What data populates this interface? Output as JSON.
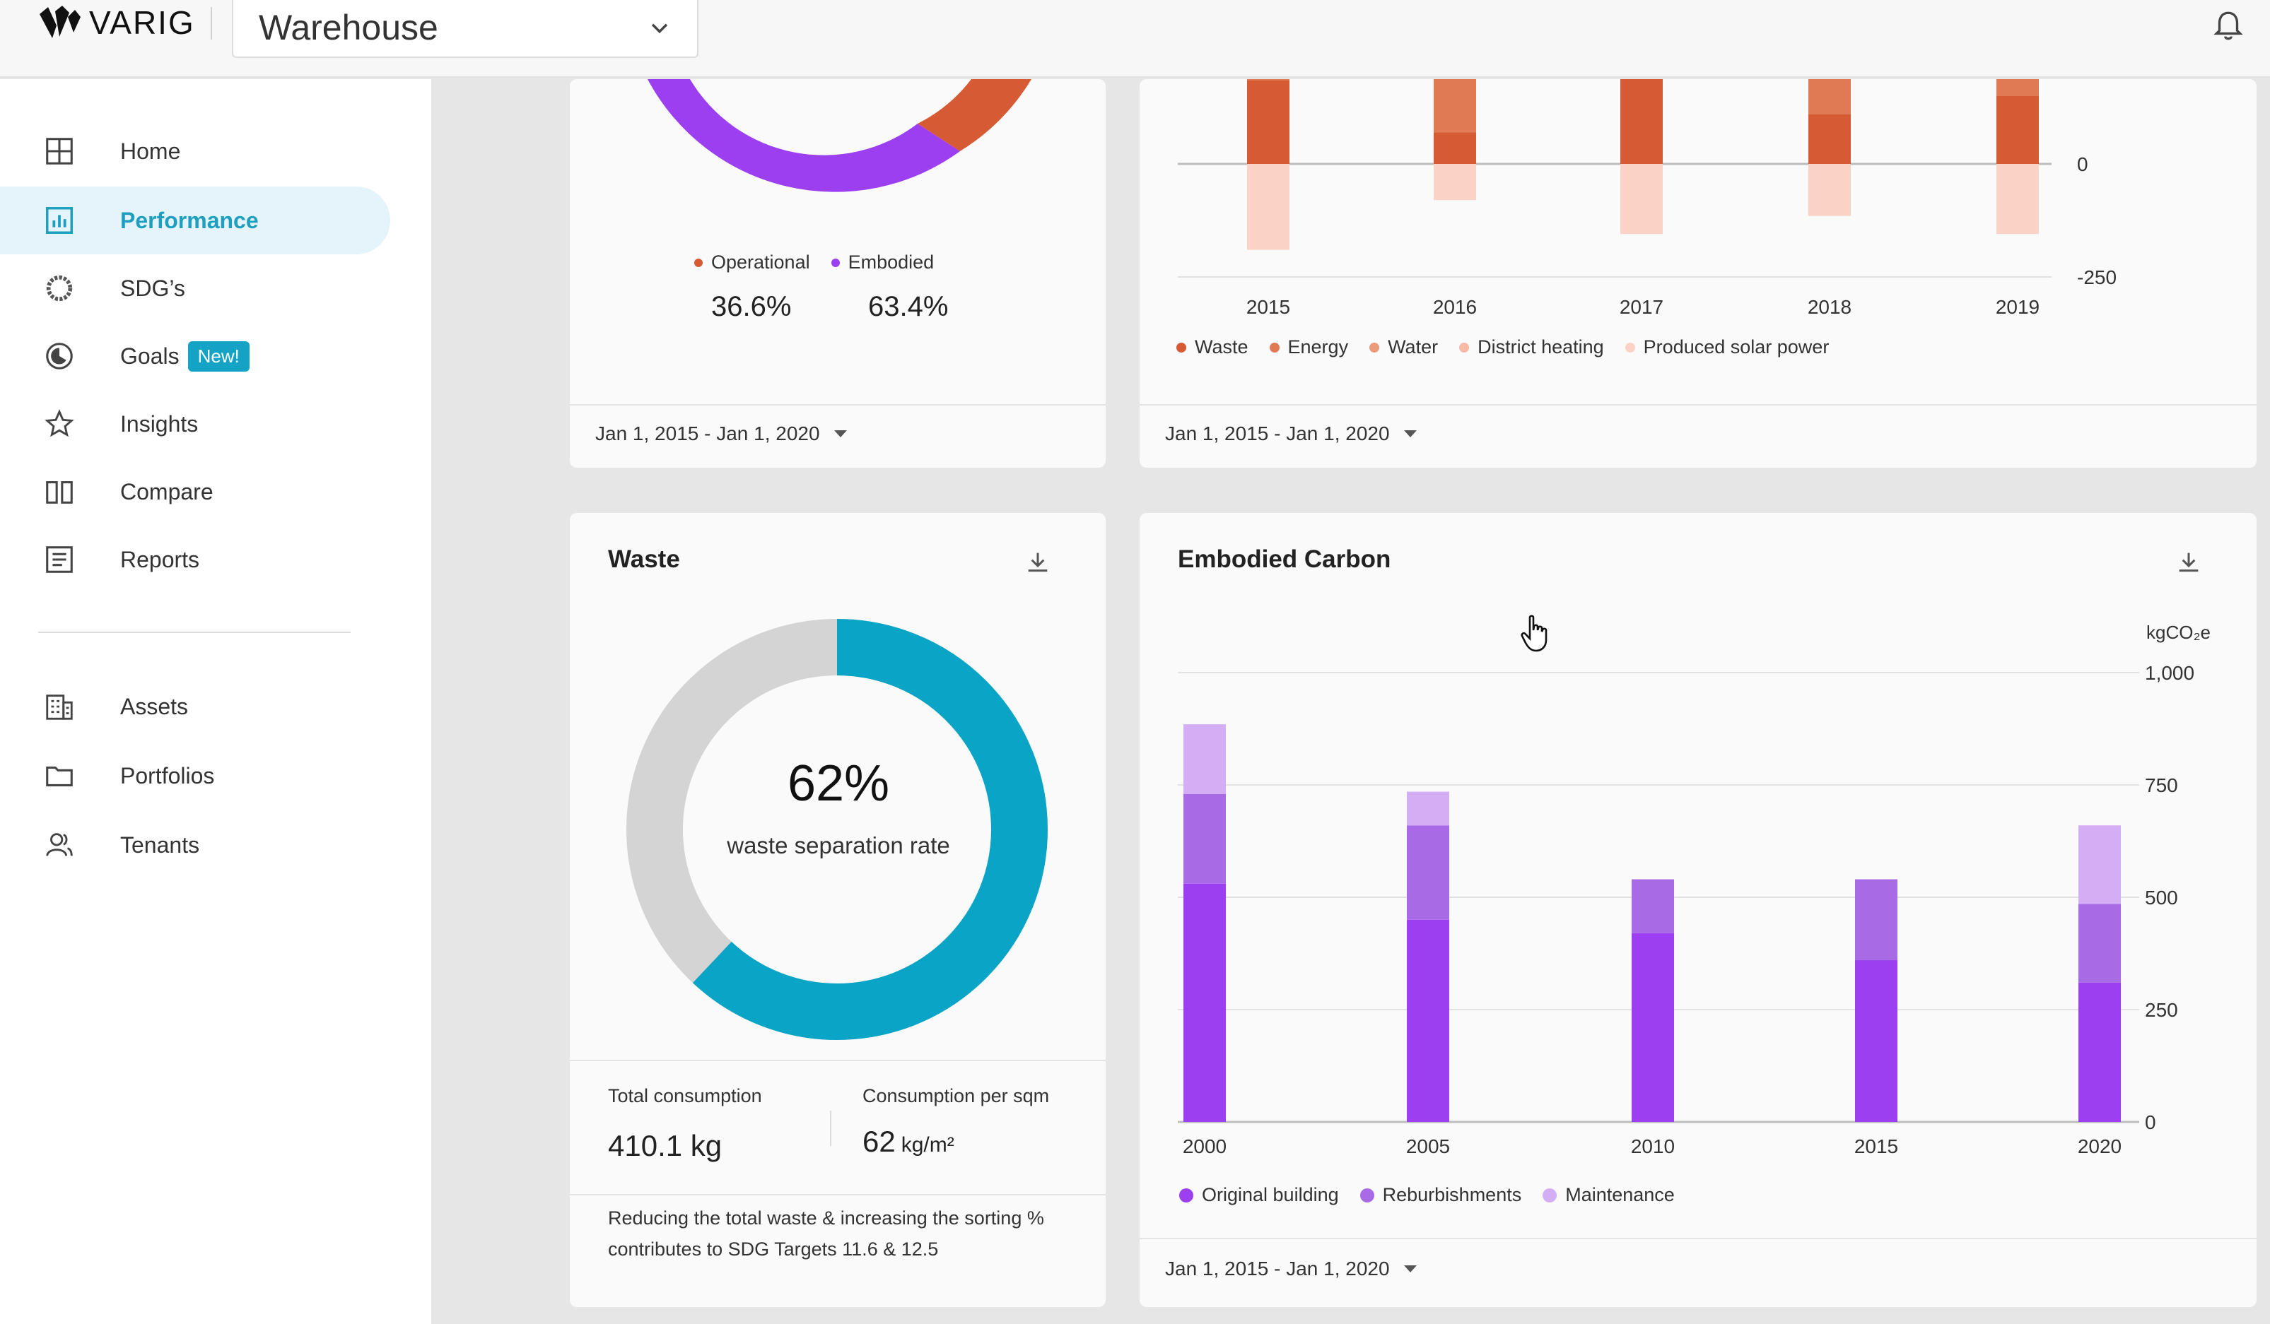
{
  "header": {
    "logo_text": "VARIG",
    "selector_label": "Warehouse",
    "icons": [
      "varig-logo-icon",
      "chevron-down-icon",
      "bell-icon"
    ]
  },
  "sidebar": {
    "items": [
      {
        "label": "Home",
        "icon": "grid-icon",
        "active": false
      },
      {
        "label": "Performance",
        "icon": "bar-chart-icon",
        "active": true
      },
      {
        "label": "SDG’s",
        "icon": "sdg-ring-icon",
        "active": false
      },
      {
        "label": "Goals",
        "icon": "goals-icon",
        "active": false,
        "badge": "New!"
      },
      {
        "label": "Insights",
        "icon": "star-icon",
        "active": false
      },
      {
        "label": "Compare",
        "icon": "compare-icon",
        "active": false
      },
      {
        "label": "Reports",
        "icon": "report-icon",
        "active": false
      },
      {
        "label": "Assets",
        "icon": "building-icon",
        "active": false
      },
      {
        "label": "Portfolios",
        "icon": "folder-icon",
        "active": false
      },
      {
        "label": "Tenants",
        "icon": "people-icon",
        "active": false
      }
    ],
    "colors": {
      "active_bg": "#e4f4fa",
      "active_text": "#1e9fbf",
      "badge_bg": "#14a3c4"
    }
  },
  "carbon_split": {
    "legend": [
      {
        "name": "Operational",
        "color": "#d65a34"
      },
      {
        "name": "Embodied",
        "color": "#9b3ff0"
      }
    ],
    "values": [
      "36.6%",
      "63.4%"
    ],
    "date_range": "Jan 1, 2015 - Jan 1, 2020"
  },
  "emissions": {
    "date_range": "Jan 1, 2015 - Jan 1, 2020",
    "legend": [
      {
        "name": "Waste",
        "color": "#d65a34"
      },
      {
        "name": "Energy",
        "color": "#e07a55"
      },
      {
        "name": "Water",
        "color": "#eb9b7c"
      },
      {
        "name": "District heating",
        "color": "#f6bca8"
      },
      {
        "name": "Produced solar power",
        "color": "#fad3c6"
      }
    ]
  },
  "waste": {
    "title": "Waste",
    "center_value": "62%",
    "center_label": "waste separation rate",
    "total_label": "Total consumption",
    "total_value": "410.1 kg",
    "per_sqm_label": "Consumption per sqm",
    "per_sqm_value": "62",
    "per_sqm_unit": "kg/m²",
    "note": "Reducing the total waste & increasing the sorting % contributes to SDG Targets 11.6 & 12.5",
    "colors": {
      "fill": "#0aa5c6",
      "rest": "#d4d4d4"
    }
  },
  "embodied": {
    "title": "Embodied Carbon",
    "date_range": "Jan 1, 2015 - Jan 1, 2020",
    "legend": [
      {
        "name": "Original building",
        "color": "#9b3ff0"
      },
      {
        "name": "Reburbishments",
        "color": "#a96ae6"
      },
      {
        "name": "Maintenance",
        "color": "#d3aef5"
      }
    ]
  },
  "chart_data": [
    {
      "type": "pie",
      "labels": [
        "Operational",
        "Embodied"
      ],
      "values": [
        36.6,
        63.4
      ],
      "colors": [
        "#d65a34",
        "#9b3ff0"
      ]
    },
    {
      "type": "bar",
      "stacked": true,
      "categories": [
        "2015",
        "2016",
        "2017",
        "2018",
        "2019"
      ],
      "y_ticks": [
        "0",
        "-250"
      ],
      "series": [
        {
          "name": "Waste",
          "values": [
            185,
            70,
            190,
            110,
            150
          ]
        },
        {
          "name": "Energy",
          "values": [
            20,
            130,
            50,
            95,
            60
          ]
        },
        {
          "name": "Produced solar power",
          "values": [
            -190,
            -80,
            -155,
            -115,
            -155
          ]
        }
      ],
      "grid": false,
      "legend_position": "bottom"
    },
    {
      "type": "pie",
      "labels": [
        "waste separation rate",
        ""
      ],
      "values": [
        62,
        38
      ],
      "colors": [
        "#0aa5c6",
        "#d4d4d4"
      ]
    },
    {
      "type": "bar",
      "stacked": true,
      "categories": [
        "2000",
        "2005",
        "2010",
        "2015",
        "2020"
      ],
      "ylabel": "kgCO₂e",
      "ylim": [
        0,
        1000
      ],
      "y_ticks": [
        0,
        250,
        500,
        750,
        1000
      ],
      "y_tick_labels": [
        "0",
        "250",
        "500",
        "750",
        "1,000"
      ],
      "series": [
        {
          "name": "Original building",
          "values": [
            530,
            450,
            420,
            360,
            310
          ],
          "color": "#9b3ff0"
        },
        {
          "name": "Reburbishments",
          "values": [
            200,
            210,
            120,
            180,
            175
          ],
          "color": "#a96ae6"
        },
        {
          "name": "Maintenance",
          "values": [
            155,
            75,
            0,
            0,
            175
          ],
          "color": "#d3aef5"
        }
      ],
      "grid": true,
      "legend_position": "bottom-left"
    }
  ]
}
